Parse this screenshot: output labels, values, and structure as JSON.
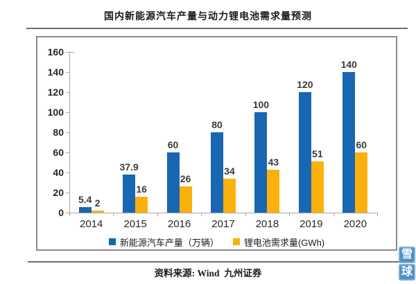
{
  "page": {
    "source_text": "资料来源: Wind  九州证券",
    "watermark": {
      "top_char": "雪",
      "bottom_char": "球",
      "color": "#4e90c5"
    }
  },
  "chart_data": {
    "type": "bar",
    "title": "国内新能源汽车产量与动力锂电池需求量预测",
    "categories": [
      "2014",
      "2015",
      "2016",
      "2017",
      "2018",
      "2019",
      "2020"
    ],
    "series": [
      {
        "name": "新能源汽车产量（万辆）",
        "color": "#1966b2",
        "values": [
          5.4,
          37.9,
          60,
          80,
          100,
          120,
          140
        ]
      },
      {
        "name": "锂电池需求量(GWh)",
        "color": "#fbb10d",
        "values": [
          2,
          16,
          26,
          34,
          43,
          51,
          60
        ]
      }
    ],
    "ylim": [
      0,
      160
    ],
    "yticks": [
      0,
      20,
      40,
      60,
      80,
      100,
      120,
      140,
      160
    ],
    "grid": false,
    "legend_position": "bottom",
    "value_labels": true
  }
}
